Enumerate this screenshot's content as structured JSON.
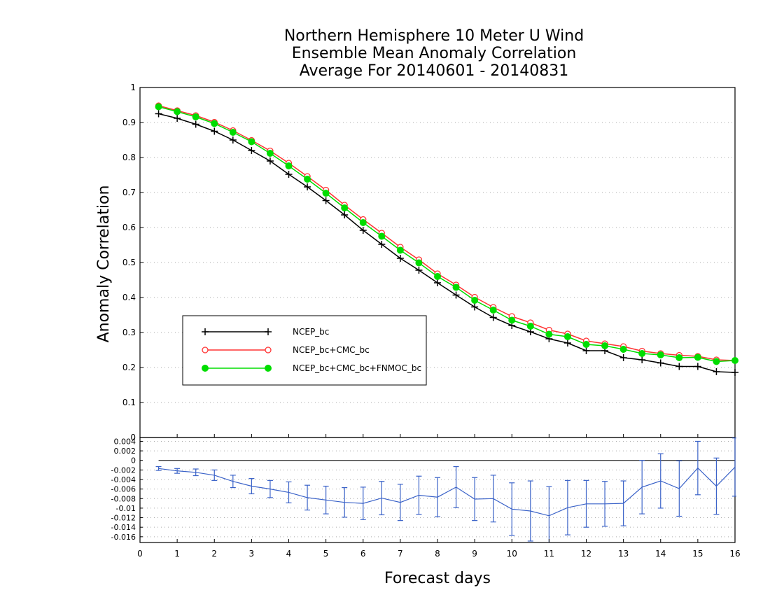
{
  "chart_data": [
    {
      "type": "line",
      "title_lines": [
        "Northern Hemisphere 10 Meter U Wind",
        "Ensemble Mean Anomaly Correlation",
        "Average For 20140601 - 20140831"
      ],
      "xlabel": "Forecast days",
      "ylabel": "Anomaly Correlation",
      "xlim": [
        0,
        16
      ],
      "ylim": [
        0,
        1
      ],
      "x_ticks": [
        "0",
        "1",
        "2",
        "3",
        "4",
        "5",
        "6",
        "7",
        "8",
        "9",
        "10",
        "11",
        "12",
        "13",
        "14",
        "15",
        "16"
      ],
      "y_ticks": [
        "0",
        "0.1",
        "0.2",
        "0.3",
        "0.4",
        "0.5",
        "0.6",
        "0.7",
        "0.8",
        "0.9",
        "1"
      ],
      "grid": true,
      "legend_position": "lower-left",
      "x": [
        0.5,
        1,
        1.5,
        2,
        2.5,
        3,
        3.5,
        4,
        4.5,
        5,
        5.5,
        6,
        6.5,
        7,
        7.5,
        8,
        8.5,
        9,
        9.5,
        10,
        10.5,
        11,
        11.5,
        12,
        12.5,
        13,
        13.5,
        14,
        14.5,
        15,
        15.5,
        16
      ],
      "series": [
        {
          "name": "NCEP_bc",
          "color": "#000000",
          "marker": "plus",
          "values": [
            0.925,
            0.912,
            0.895,
            0.875,
            0.85,
            0.82,
            0.79,
            0.752,
            0.716,
            0.677,
            0.636,
            0.592,
            0.552,
            0.512,
            0.478,
            0.442,
            0.407,
            0.373,
            0.343,
            0.32,
            0.302,
            0.282,
            0.27,
            0.248,
            0.248,
            0.228,
            0.222,
            0.213,
            0.203,
            0.203,
            0.188,
            0.186
          ]
        },
        {
          "name": "NCEP_bc+CMC_bc",
          "color": "#ff3333",
          "marker": "open-circle",
          "values": [
            0.948,
            0.934,
            0.92,
            0.901,
            0.877,
            0.849,
            0.819,
            0.784,
            0.746,
            0.707,
            0.664,
            0.623,
            0.584,
            0.544,
            0.508,
            0.468,
            0.436,
            0.401,
            0.372,
            0.346,
            0.328,
            0.307,
            0.296,
            0.276,
            0.268,
            0.26,
            0.247,
            0.24,
            0.235,
            0.232,
            0.222,
            0.22
          ]
        },
        {
          "name": "NCEP_bc+CMC_bc+FNMOC_bc",
          "color": "#00dd00",
          "marker": "filled-circle",
          "values": [
            0.945,
            0.931,
            0.916,
            0.897,
            0.872,
            0.845,
            0.812,
            0.776,
            0.738,
            0.698,
            0.656,
            0.614,
            0.575,
            0.535,
            0.499,
            0.46,
            0.429,
            0.392,
            0.364,
            0.335,
            0.318,
            0.295,
            0.288,
            0.266,
            0.262,
            0.252,
            0.24,
            0.236,
            0.228,
            0.229,
            0.217,
            0.22
          ]
        }
      ]
    },
    {
      "type": "line",
      "title": "",
      "xlabel": "Forecast days",
      "xlim": [
        0,
        16
      ],
      "ylim": [
        -0.0172,
        0.0048
      ],
      "y_ticks": [
        "0.004",
        "0.002",
        "0",
        "-0.002",
        "-0.004",
        "-0.006",
        "-0.008",
        "-0.01",
        "-0.012",
        "-0.014",
        "-0.016"
      ],
      "reference_line": 0,
      "x": [
        0.5,
        1,
        1.5,
        2,
        2.5,
        3,
        3.5,
        4,
        4.5,
        5,
        5.5,
        6,
        6.5,
        7,
        7.5,
        8,
        8.5,
        9,
        9.5,
        10,
        10.5,
        11,
        11.5,
        12,
        12.5,
        13,
        13.5,
        14,
        14.5,
        15,
        15.5,
        16
      ],
      "series": [
        {
          "name": "",
          "color": "#3a62c8",
          "marker": "errorbar",
          "values": [
            -0.0017,
            -0.0022,
            -0.0025,
            -0.0031,
            -0.0044,
            -0.0054,
            -0.006,
            -0.0067,
            -0.0078,
            -0.0083,
            -0.0088,
            -0.009,
            -0.0079,
            -0.0088,
            -0.0073,
            -0.0077,
            -0.0056,
            -0.0081,
            -0.008,
            -0.0102,
            -0.0106,
            -0.0116,
            -0.0099,
            -0.0091,
            -0.0091,
            -0.009,
            -0.0056,
            -0.0043,
            -0.0059,
            -0.0016,
            -0.0054,
            -0.0014
          ],
          "errors": [
            0.0004,
            0.0005,
            0.0007,
            0.0011,
            0.0013,
            0.0016,
            0.0018,
            0.0022,
            0.0026,
            0.0029,
            0.0031,
            0.0034,
            0.0035,
            0.0038,
            0.004,
            0.0041,
            0.0043,
            0.0045,
            0.0049,
            0.0055,
            0.0063,
            0.0061,
            0.0057,
            0.0049,
            0.0047,
            0.0047,
            0.0056,
            0.0057,
            0.0058,
            0.0056,
            0.0059,
            0.0061
          ]
        }
      ]
    }
  ]
}
